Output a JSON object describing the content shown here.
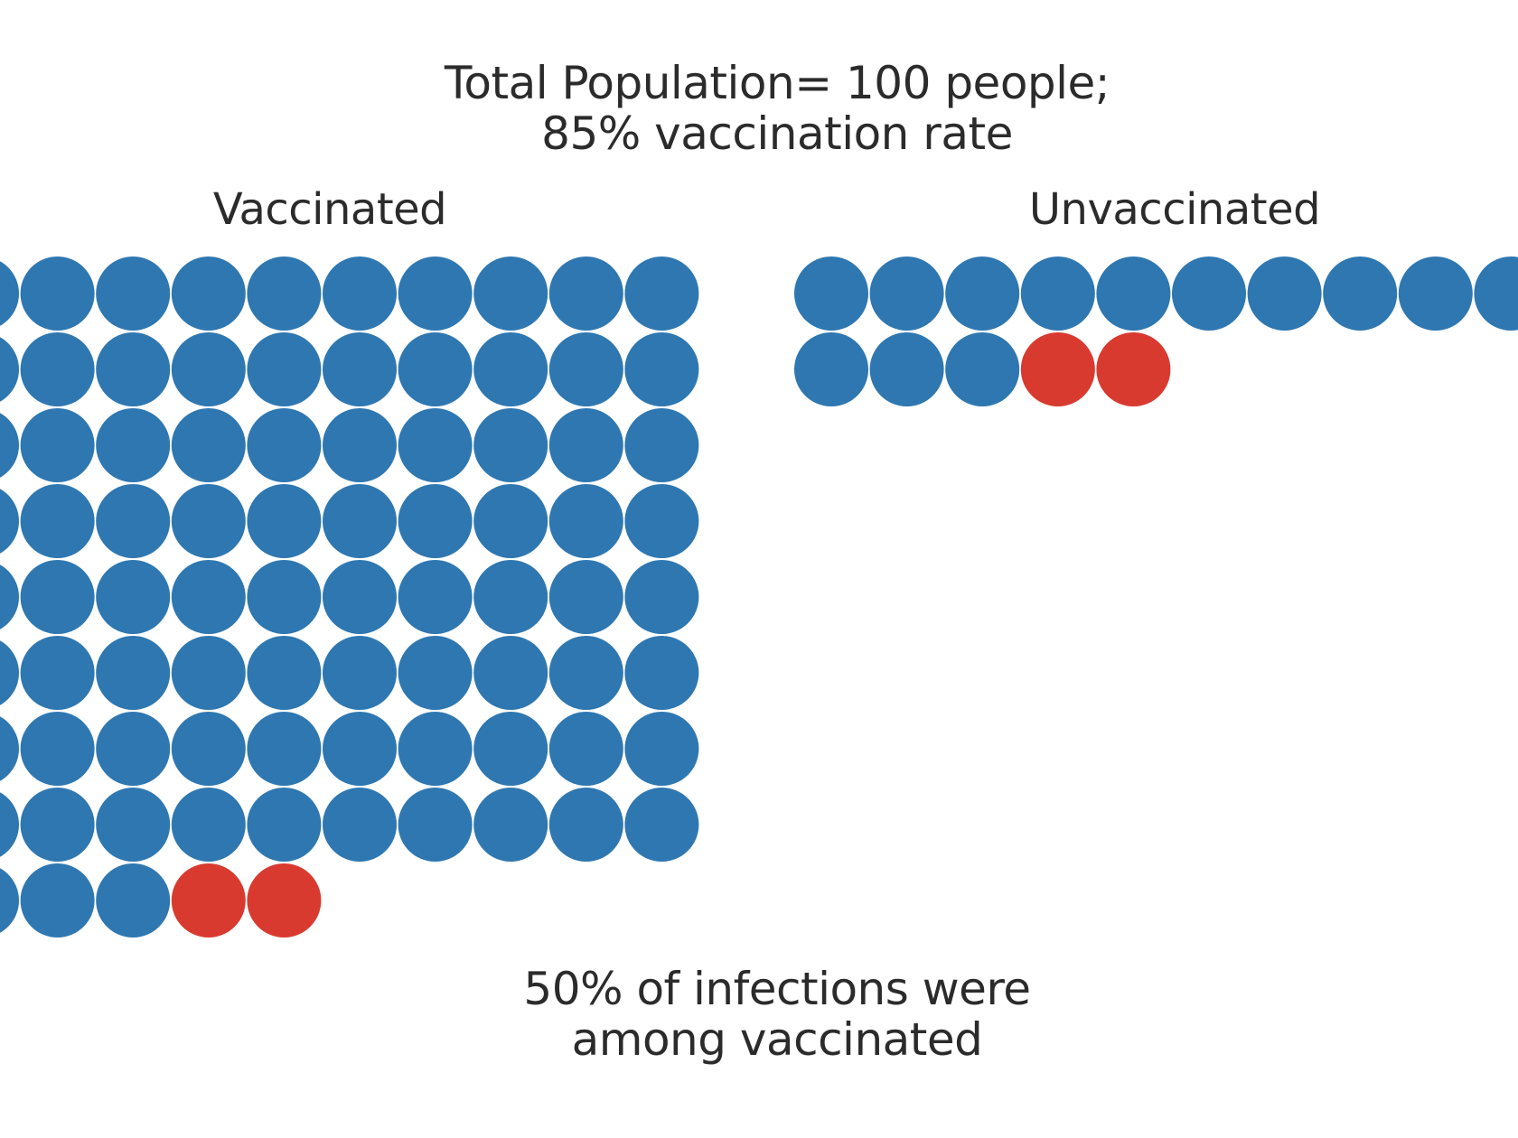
{
  "chart_data": {
    "type": "unit",
    "title_lines": [
      "Total Population= 100 people;",
      "85% vaccination rate"
    ],
    "groups": [
      {
        "name": "Vaccinated",
        "count": 85,
        "infected": 2
      },
      {
        "name": "Unvaccinated",
        "count": 15,
        "infected": 2
      }
    ],
    "caption_lines": [
      "50% of infections were",
      "among vaccinated"
    ],
    "colors": {
      "healthy": "#2e77b1",
      "infected": "#d93a2f",
      "text": "#2b2b2b"
    }
  }
}
